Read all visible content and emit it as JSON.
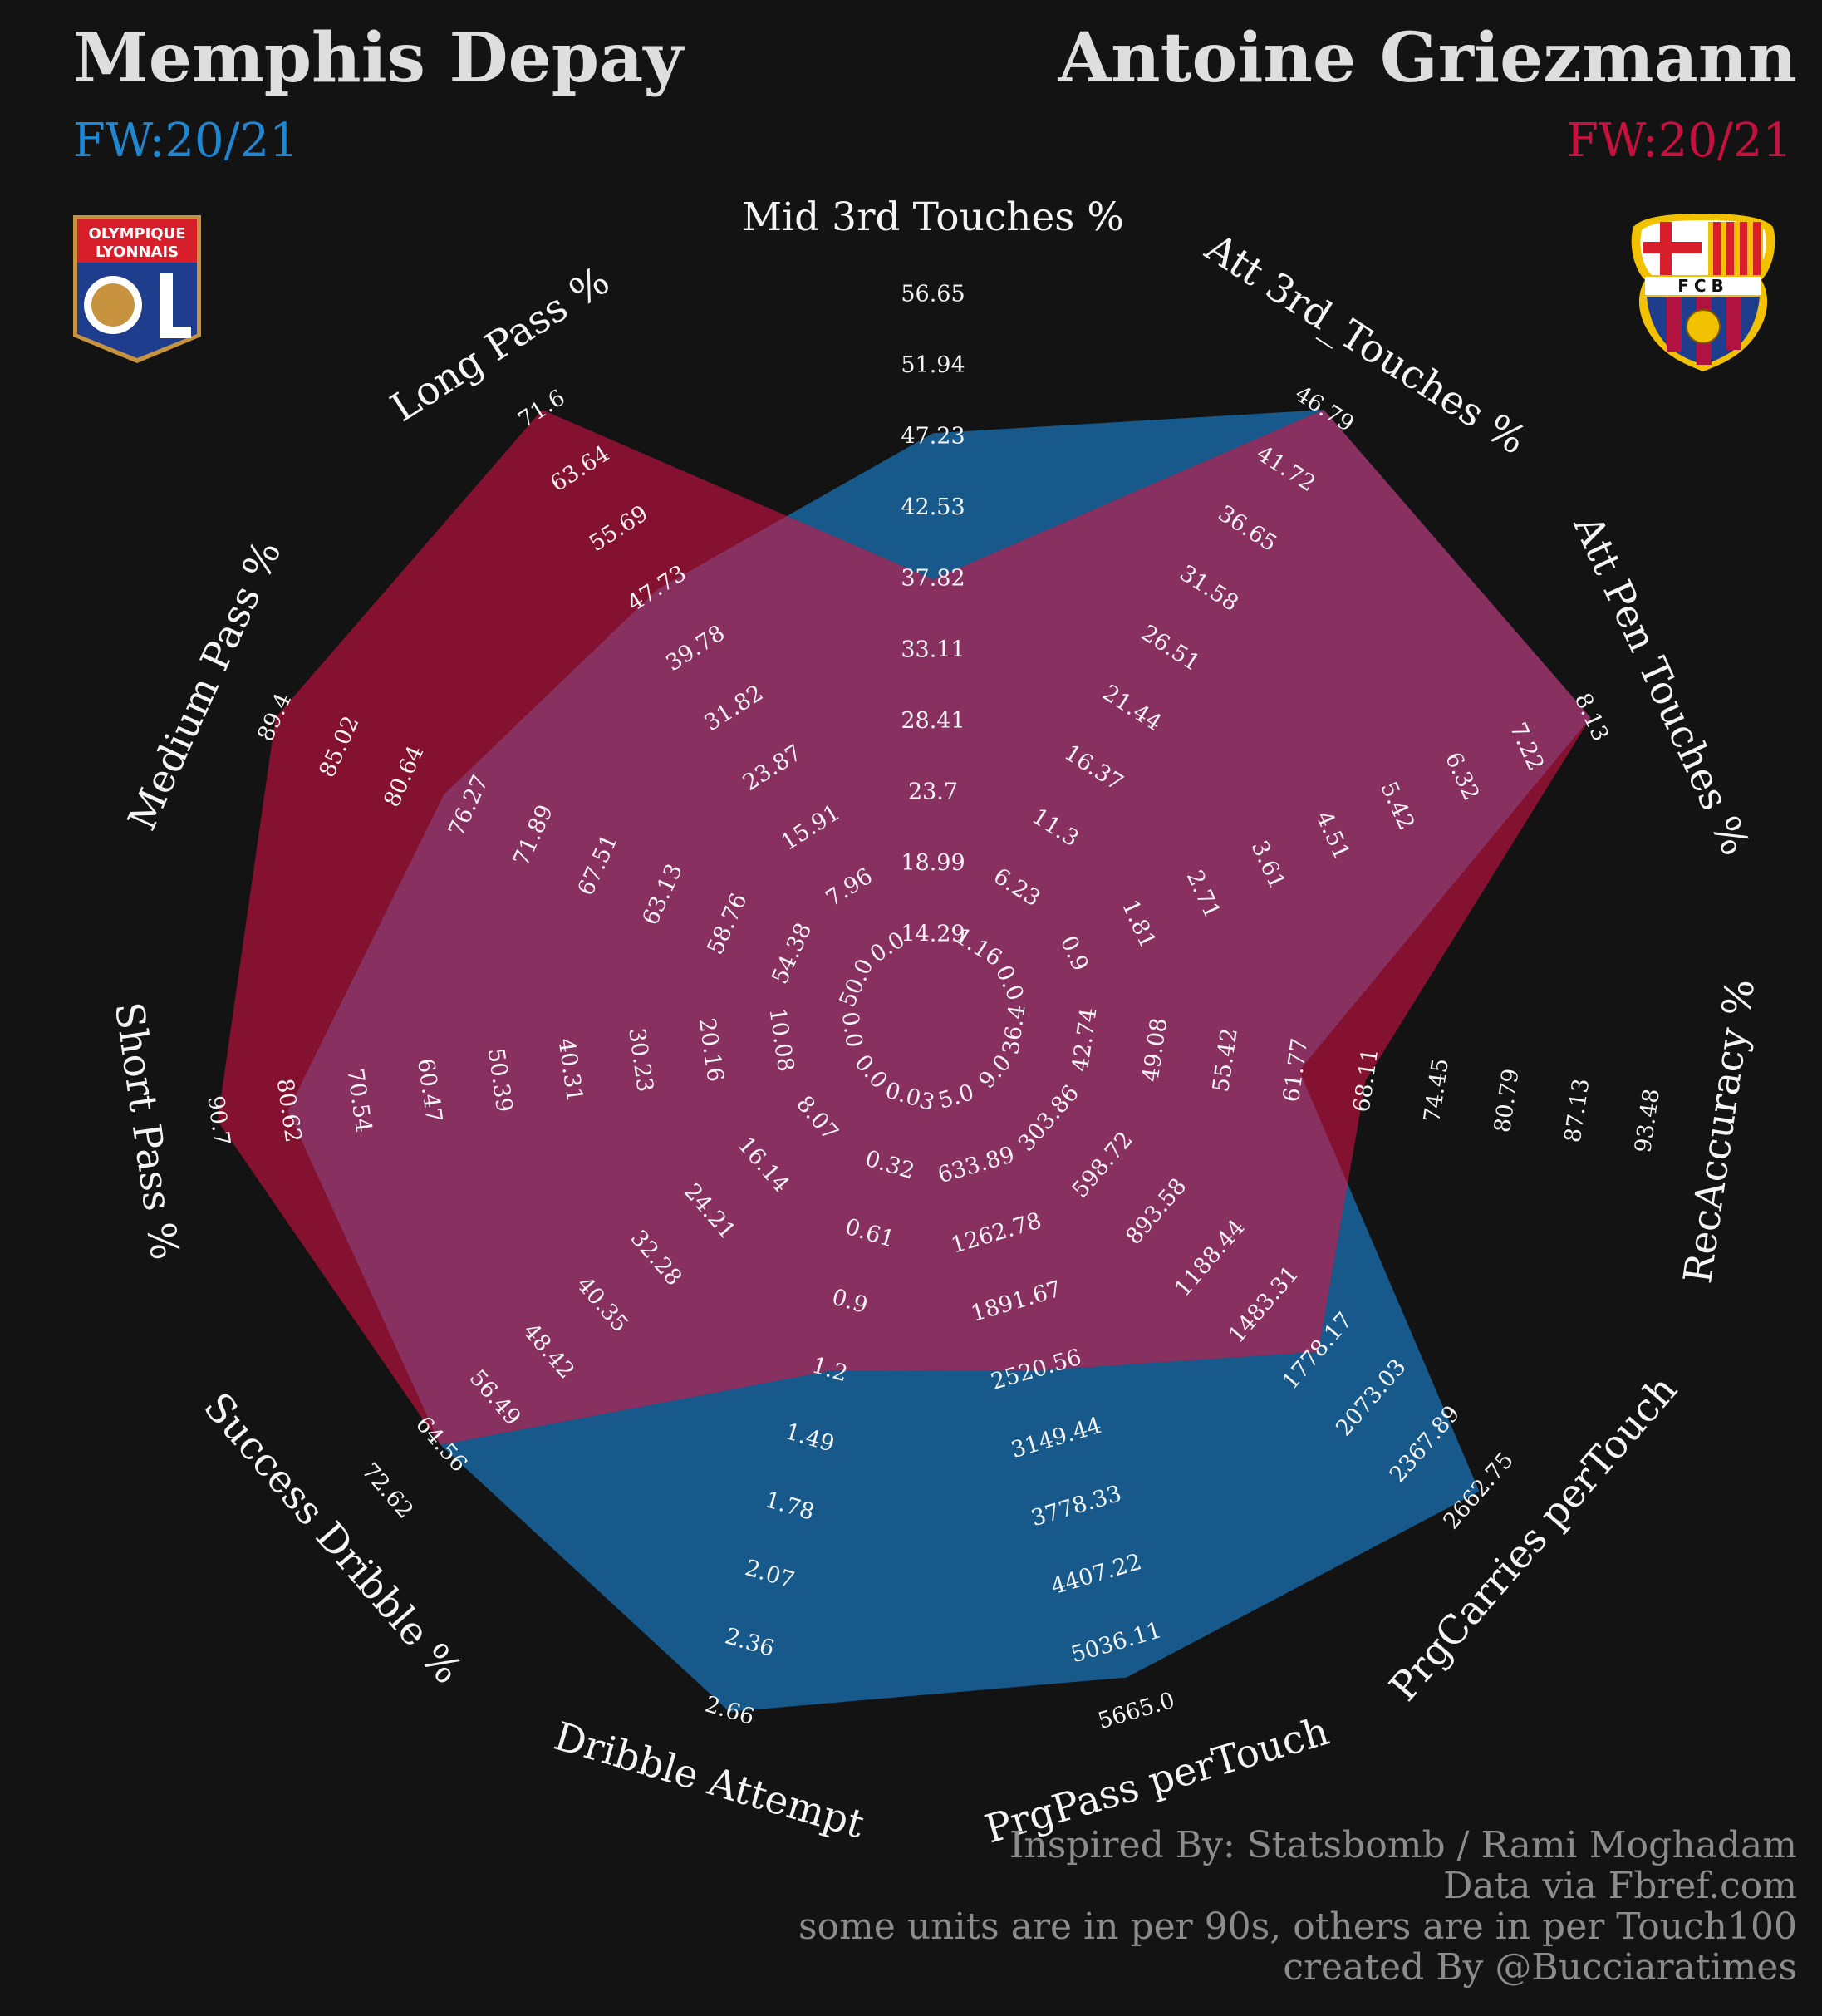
{
  "header": {
    "left_title": "Memphis Depay",
    "left_subtitle": "FW:20/21",
    "right_title": "Antoine Griezmann",
    "right_subtitle": "FW:20/21"
  },
  "logos": {
    "left": {
      "name": "olympique-lyonnais-crest",
      "line1": "OLYMPIQUE",
      "line2": "LYONNAIS",
      "monogram": "OL"
    },
    "right": {
      "name": "fc-barcelona-crest",
      "letters": "FCB"
    }
  },
  "colors": {
    "background": "#131313",
    "depay": "#1f86d0",
    "griezmann": "#c8103f",
    "depay_fill": "#16598a",
    "griezmann_fill": "#851130",
    "overlap_fill": "#883060"
  },
  "chart_data": {
    "type": "radar",
    "axes": [
      {
        "label": "Mid 3rd Touches %",
        "ticks": [
          "14.29",
          "18.99",
          "23.7",
          "28.41",
          "33.11",
          "37.82",
          "42.53",
          "47.23",
          "51.94",
          "56.65"
        ],
        "min": 14.29,
        "max": 56.65
      },
      {
        "label": "Att 3rd_Touches %",
        "ticks": [
          "1.16",
          "6.23",
          "11.3",
          "16.37",
          "21.44",
          "26.51",
          "31.58",
          "36.65",
          "41.72",
          "46.79"
        ],
        "min": 1.16,
        "max": 46.79
      },
      {
        "label": "Att Pen Touches %",
        "ticks": [
          "0.0",
          "0.9",
          "1.81",
          "2.71",
          "3.61",
          "4.51",
          "5.42",
          "6.32",
          "7.22",
          "8.13"
        ],
        "min": 0.0,
        "max": 8.13
      },
      {
        "label": "RecAccuracy %",
        "ticks": [
          "36.4",
          "42.74",
          "49.08",
          "55.42",
          "61.77",
          "68.11",
          "74.45",
          "80.79",
          "87.13",
          "93.48"
        ],
        "min": 36.4,
        "max": 93.48
      },
      {
        "label": "PrgCarries perTouch",
        "ticks": [
          "9.0",
          "303.86",
          "598.72",
          "893.58",
          "1188.44",
          "1483.31",
          "1778.17",
          "2073.03",
          "2367.89",
          "2662.75"
        ],
        "min": 9.0,
        "max": 2662.75
      },
      {
        "label": "PrgPass perTouch",
        "ticks": [
          "5.0",
          "633.89",
          "1262.78",
          "1891.67",
          "2520.56",
          "3149.44",
          "3778.33",
          "4407.22",
          "5036.11",
          "5665.0"
        ],
        "min": 5.0,
        "max": 5665.0
      },
      {
        "label": "Dribble Attempt",
        "ticks": [
          "0.03",
          "0.32",
          "0.61",
          "0.9",
          "1.2",
          "1.49",
          "1.78",
          "2.07",
          "2.36",
          "2.66"
        ],
        "min": 0.03,
        "max": 2.66
      },
      {
        "label": "Success Dribble %",
        "ticks": [
          "0.0",
          "8.07",
          "16.14",
          "24.21",
          "32.28",
          "40.35",
          "48.42",
          "56.49",
          "64.56",
          "72.62"
        ],
        "min": 0.0,
        "max": 72.62
      },
      {
        "label": "Short Pass %",
        "ticks": [
          "0.0",
          "10.08",
          "20.16",
          "30.23",
          "40.31",
          "50.39",
          "60.47",
          "70.54",
          "80.62",
          "90.7"
        ],
        "min": 0.0,
        "max": 90.7
      },
      {
        "label": "Medium Pass %",
        "ticks": [
          "50.0",
          "54.38",
          "58.76",
          "63.13",
          "67.51",
          "71.89",
          "76.27",
          "80.64",
          "85.02",
          "89.4"
        ],
        "min": 50.0,
        "max": 89.4
      },
      {
        "label": "Long Pass %",
        "ticks": [
          "0.0",
          "7.96",
          "15.91",
          "23.87",
          "31.82",
          "39.78",
          "47.73",
          "55.69",
          "63.64",
          "71.6"
        ],
        "min": 0.0,
        "max": 71.6
      }
    ],
    "series": [
      {
        "name": "Memphis Depay",
        "values": [
          47.5,
          46.79,
          8.13,
          62.0,
          2662.75,
          5350.0,
          2.66,
          64.56,
          80.62,
          78.0,
          47.73
        ]
      },
      {
        "name": "Antoine Griezmann",
        "values": [
          37.82,
          46.79,
          8.13,
          68.0,
          1778.17,
          2520.56,
          1.2,
          64.56,
          90.7,
          89.4,
          71.6
        ]
      }
    ]
  },
  "credits": {
    "line1": "Inspired By: Statsbomb / Rami Moghadam",
    "line2": "Data via Fbref.com",
    "line3": "some units are in per 90s, others are in per Touch100",
    "line4": "created By @Bucciaratimes"
  }
}
